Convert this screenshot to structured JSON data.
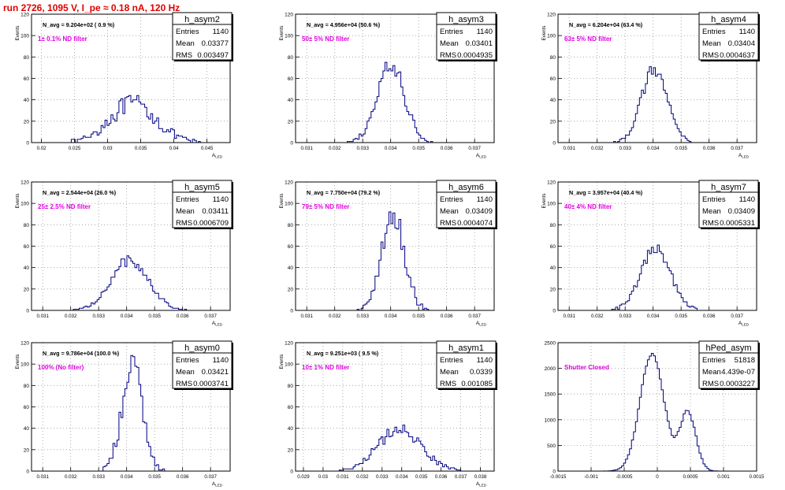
{
  "canvas_title": "run 2726,  1095 V, I_pe ≈ 0.18 nA, 120 Hz",
  "colors": {
    "title": "#e00000",
    "hist": "#000080",
    "magenta": "#e000e0",
    "grid": "#9a9a9a"
  },
  "chart_data": [
    {
      "type": "bar",
      "name": "h_asym2",
      "navg": "N_avg = 9.204e+02 ( 0.9 %)",
      "filter": "1± 0.1% ND filter",
      "stats": {
        "entries_label": "Entries",
        "entries": "1140",
        "mean_label": "Mean",
        "mean": "0.03377",
        "rms_label": "RMS",
        "rms": "0.003497"
      },
      "xlabel": "A_LED",
      "ylabel": "Events",
      "xlim": [
        0.0185,
        0.0485
      ],
      "ylim": [
        0,
        120
      ],
      "xticks": [
        0.02,
        0.025,
        0.03,
        0.035,
        0.04,
        0.045
      ],
      "xtick_labels": [
        "0.02",
        "0.025",
        "0.03",
        "0.035",
        "0.04",
        "0.045"
      ],
      "yticks": [
        0,
        20,
        40,
        60,
        80,
        100,
        120
      ],
      "ytick_labels": [
        "0",
        "20",
        "40",
        "60",
        "80",
        "100",
        "120"
      ],
      "hist": {
        "mean": 0.03377,
        "sigma": 0.0035,
        "peak": 36,
        "noise": 9
      }
    },
    {
      "type": "bar",
      "name": "h_asym3",
      "navg": "N_avg = 4.956e+04 (50.6 %)",
      "filter": "50± 5% ND filter",
      "stats": {
        "entries_label": "Entries",
        "entries": "1140",
        "mean_label": "Mean",
        "mean": "0.03401",
        "rms_label": "RMS",
        "rms": "0.0004935"
      },
      "xlabel": "A_LED",
      "ylabel": "Events",
      "xlim": [
        0.0306,
        0.0377
      ],
      "ylim": [
        0,
        120
      ],
      "xticks": [
        0.031,
        0.032,
        0.033,
        0.034,
        0.035,
        0.036,
        0.037
      ],
      "xtick_labels": [
        "0.031",
        "0.032",
        "0.033",
        "0.034",
        "0.035",
        "0.036",
        "0.037"
      ],
      "yticks": [
        0,
        20,
        40,
        60,
        80,
        100,
        120
      ],
      "ytick_labels": [
        "0",
        "20",
        "40",
        "60",
        "80",
        "100",
        "120"
      ],
      "hist": {
        "mean": 0.03401,
        "sigma": 0.00049,
        "peak": 72,
        "noise": 8
      }
    },
    {
      "type": "bar",
      "name": "h_asym4",
      "navg": "N_avg = 6.204e+04 (63.4 %)",
      "filter": "63± 5% ND filter",
      "stats": {
        "entries_label": "Entries",
        "entries": "1140",
        "mean_label": "Mean",
        "mean": "0.03404",
        "rms_label": "RMS",
        "rms": "0.0004637"
      },
      "xlabel": "A_LED",
      "ylabel": "Events",
      "xlim": [
        0.0306,
        0.0377
      ],
      "ylim": [
        0,
        120
      ],
      "xticks": [
        0.031,
        0.032,
        0.033,
        0.034,
        0.035,
        0.036,
        0.037
      ],
      "xtick_labels": [
        "0.031",
        "0.032",
        "0.033",
        "0.034",
        "0.035",
        "0.036",
        "0.037"
      ],
      "yticks": [
        0,
        20,
        40,
        60,
        80,
        100,
        120
      ],
      "ytick_labels": [
        "0",
        "20",
        "40",
        "60",
        "80",
        "100",
        "120"
      ],
      "hist": {
        "mean": 0.03404,
        "sigma": 0.00046,
        "peak": 68,
        "noise": 6
      }
    },
    {
      "type": "bar",
      "name": "h_asym5",
      "navg": "N_avg = 2.544e+04 (26.0 %)",
      "filter": "25± 2.5% ND filter",
      "stats": {
        "entries_label": "Entries",
        "entries": "1140",
        "mean_label": "Mean",
        "mean": "0.03411",
        "rms_label": "RMS",
        "rms": "0.0006709"
      },
      "xlabel": "A_LED",
      "ylabel": "Events",
      "xlim": [
        0.0306,
        0.0377
      ],
      "ylim": [
        0,
        120
      ],
      "xticks": [
        0.031,
        0.032,
        0.033,
        0.034,
        0.035,
        0.036,
        0.037
      ],
      "xtick_labels": [
        "0.031",
        "0.032",
        "0.033",
        "0.034",
        "0.035",
        "0.036",
        "0.037"
      ],
      "yticks": [
        0,
        20,
        40,
        60,
        80,
        100,
        120
      ],
      "ytick_labels": [
        "0",
        "20",
        "40",
        "60",
        "80",
        "100",
        "120"
      ],
      "hist": {
        "mean": 0.03411,
        "sigma": 0.00067,
        "peak": 47,
        "noise": 5
      }
    },
    {
      "type": "bar",
      "name": "h_asym6",
      "navg": "N_avg = 7.750e+04 (79.2 %)",
      "filter": "79± 5% ND filter",
      "stats": {
        "entries_label": "Entries",
        "entries": "1140",
        "mean_label": "Mean",
        "mean": "0.03409",
        "rms_label": "RMS",
        "rms": "0.0004074"
      },
      "xlabel": "A_LED",
      "ylabel": "Events",
      "xlim": [
        0.0306,
        0.0377
      ],
      "ylim": [
        0,
        120
      ],
      "xticks": [
        0.031,
        0.032,
        0.033,
        0.034,
        0.035,
        0.036,
        0.037
      ],
      "xtick_labels": [
        "0.031",
        "0.032",
        "0.033",
        "0.034",
        "0.035",
        "0.036",
        "0.037"
      ],
      "yticks": [
        0,
        20,
        40,
        60,
        80,
        100,
        120
      ],
      "ytick_labels": [
        "0",
        "20",
        "40",
        "60",
        "80",
        "100",
        "120"
      ],
      "hist": {
        "mean": 0.03409,
        "sigma": 0.00041,
        "peak": 88,
        "noise": 12
      }
    },
    {
      "type": "bar",
      "name": "h_asym7",
      "navg": "N_avg = 3.957e+04 (40.4 %)",
      "filter": "40± 4% ND filter",
      "stats": {
        "entries_label": "Entries",
        "entries": "1140",
        "mean_label": "Mean",
        "mean": "0.03409",
        "rms_label": "RMS",
        "rms": "0.0005331"
      },
      "xlabel": "A_LED",
      "ylabel": "Events",
      "xlim": [
        0.0306,
        0.0377
      ],
      "ylim": [
        0,
        120
      ],
      "xticks": [
        0.031,
        0.032,
        0.033,
        0.034,
        0.035,
        0.036,
        0.037
      ],
      "xtick_labels": [
        "0.031",
        "0.032",
        "0.033",
        "0.034",
        "0.035",
        "0.036",
        "0.037"
      ],
      "yticks": [
        0,
        20,
        40,
        60,
        80,
        100,
        120
      ],
      "ytick_labels": [
        "0",
        "20",
        "40",
        "60",
        "80",
        "100",
        "120"
      ],
      "hist": {
        "mean": 0.03409,
        "sigma": 0.00053,
        "peak": 57,
        "noise": 6
      }
    },
    {
      "type": "bar",
      "name": "h_asym0",
      "navg": "N_avg = 9.786e+04 (100.0 %)",
      "filter": "100% (No filter)",
      "stats": {
        "entries_label": "Entries",
        "entries": "1140",
        "mean_label": "Mean",
        "mean": "0.03421",
        "rms_label": "RMS",
        "rms": "0.0003741"
      },
      "xlabel": "A_LED",
      "ylabel": "Events",
      "xlim": [
        0.0306,
        0.0377
      ],
      "ylim": [
        0,
        120
      ],
      "xticks": [
        0.031,
        0.032,
        0.033,
        0.034,
        0.035,
        0.036,
        0.037
      ],
      "xtick_labels": [
        "0.031",
        "0.032",
        "0.033",
        "0.034",
        "0.035",
        "0.036",
        "0.037"
      ],
      "yticks": [
        0,
        20,
        40,
        60,
        80,
        100,
        120
      ],
      "ytick_labels": [
        "0",
        "20",
        "40",
        "60",
        "80",
        "100",
        "120"
      ],
      "hist": {
        "mean": 0.03421,
        "sigma": 0.00037,
        "peak": 98,
        "noise": 14
      }
    },
    {
      "type": "bar",
      "name": "h_asym1",
      "navg": "N_avg = 9.251e+03 ( 9.5 %)",
      "filter": "10± 1% ND filter",
      "stats": {
        "entries_label": "Entries",
        "entries": "1140",
        "mean_label": "Mean",
        "mean": "0.0339",
        "rms_label": "RMS",
        "rms": "0.001085"
      },
      "xlabel": "A_LED",
      "ylabel": "Events",
      "xlim": [
        0.0286,
        0.0387
      ],
      "ylim": [
        0,
        120
      ],
      "xticks": [
        0.029,
        0.03,
        0.031,
        0.032,
        0.033,
        0.034,
        0.035,
        0.036,
        0.037,
        0.038
      ],
      "xtick_labels": [
        "0.029",
        "0.03",
        "0.031",
        "0.032",
        "0.033",
        "0.034",
        "0.035",
        "0.036",
        "0.037",
        "0.038"
      ],
      "yticks": [
        0,
        20,
        40,
        60,
        80,
        100,
        120
      ],
      "ytick_labels": [
        "0",
        "20",
        "40",
        "60",
        "80",
        "100",
        "120"
      ],
      "hist": {
        "mean": 0.0339,
        "sigma": 0.00108,
        "peak": 40,
        "noise": 6
      }
    },
    {
      "type": "bar",
      "name": "hPed_asym",
      "navg": "",
      "filter": "Shutter Closed",
      "stats": {
        "entries_label": "Entries",
        "entries": "51818",
        "mean_label": "Mean",
        "mean": "4.439e-07",
        "rms_label": "RMS",
        "rms": "0.0003227"
      },
      "xlabel": "",
      "ylabel": "",
      "xlim": [
        -0.0015,
        0.0015
      ],
      "ylim": [
        0,
        2500
      ],
      "xticks": [
        -0.0015,
        -0.001,
        -0.0005,
        0,
        0.0005,
        0.001,
        0.0015
      ],
      "xtick_labels": [
        "-0.0015",
        "-0.001",
        "-0.0005",
        "0",
        "0.0005",
        "0.001",
        "0.0015"
      ],
      "yticks": [
        0,
        500,
        1000,
        1500,
        2000,
        2500
      ],
      "ytick_labels": [
        "0",
        "500",
        "1000",
        "1500",
        "2000",
        "2500"
      ],
      "hist": {
        "bimodal": true,
        "peaks": [
          {
            "mean": -8e-05,
            "sigma": 0.00018,
            "peak": 2300
          },
          {
            "mean": 0.00046,
            "sigma": 0.00012,
            "peak": 1150
          }
        ],
        "noise": 40
      }
    }
  ]
}
